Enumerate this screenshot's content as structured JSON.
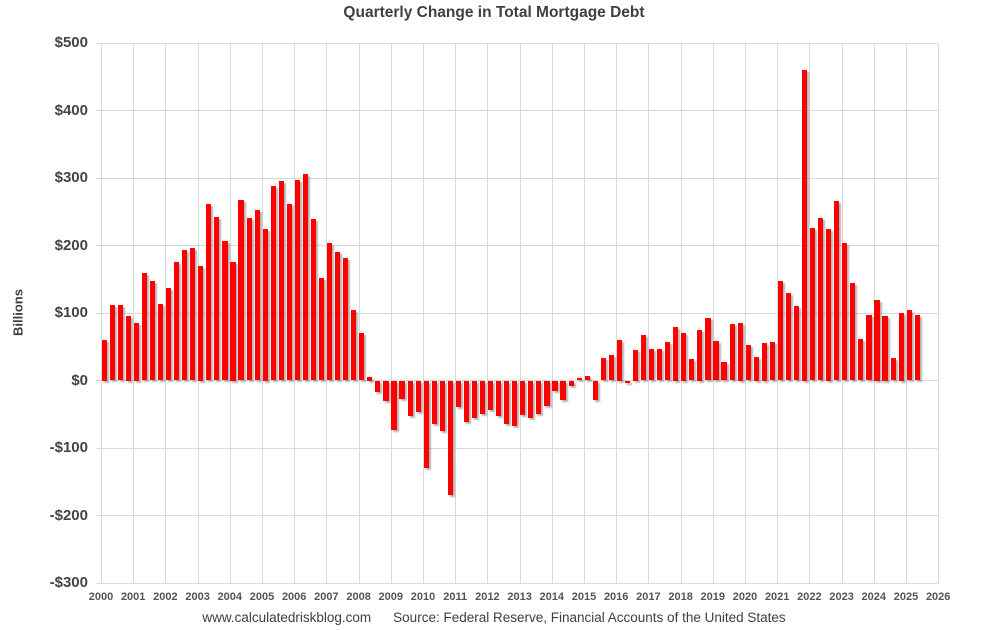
{
  "title": "Quarterly Change in Total Mortgage Debt",
  "y_axis": {
    "label": "Billions",
    "ticks": [
      {
        "label": "$500",
        "value": 500
      },
      {
        "label": "$400",
        "value": 400
      },
      {
        "label": "$300",
        "value": 300
      },
      {
        "label": "$200",
        "value": 200
      },
      {
        "label": "$100",
        "value": 100
      },
      {
        "label": "$0",
        "value": 0
      },
      {
        "label": "-$100",
        "value": -100
      },
      {
        "label": "-$200",
        "value": -200
      },
      {
        "label": "-$300",
        "value": -300
      }
    ]
  },
  "x_axis": {
    "years": [
      "2000",
      "2001",
      "2002",
      "2003",
      "2004",
      "2005",
      "2006",
      "2007",
      "2008",
      "2009",
      "2010",
      "2011",
      "2012",
      "2013",
      "2014",
      "2015",
      "2016",
      "2017",
      "2018",
      "2019",
      "2020",
      "2021",
      "2022",
      "2023",
      "2024",
      "2025",
      "2026"
    ]
  },
  "footer": {
    "website": "www.calculatedriskblog.com",
    "source": "Source: Federal Reserve, Financial Accounts of the United States"
  },
  "chart_data": {
    "type": "bar",
    "title": "Quarterly Change in Total Mortgage Debt",
    "ylabel": "Billions",
    "ylim": [
      -300,
      500
    ],
    "x_range_years": [
      2000,
      2026
    ],
    "grid": true,
    "legend": "none",
    "bar_color": "#fe0000",
    "units": "billions of dollars",
    "x": [
      "2000Q1",
      "2000Q2",
      "2000Q3",
      "2000Q4",
      "2001Q1",
      "2001Q2",
      "2001Q3",
      "2001Q4",
      "2002Q1",
      "2002Q2",
      "2002Q3",
      "2002Q4",
      "2003Q1",
      "2003Q2",
      "2003Q3",
      "2003Q4",
      "2004Q1",
      "2004Q2",
      "2004Q3",
      "2004Q4",
      "2005Q1",
      "2005Q2",
      "2005Q3",
      "2005Q4",
      "2006Q1",
      "2006Q2",
      "2006Q3",
      "2006Q4",
      "2007Q1",
      "2007Q2",
      "2007Q3",
      "2007Q4",
      "2008Q1",
      "2008Q2",
      "2008Q3",
      "2008Q4",
      "2009Q1",
      "2009Q2",
      "2009Q3",
      "2009Q4",
      "2010Q1",
      "2010Q2",
      "2010Q3",
      "2010Q4",
      "2011Q1",
      "2011Q2",
      "2011Q3",
      "2011Q4",
      "2012Q1",
      "2012Q2",
      "2012Q3",
      "2012Q4",
      "2013Q1",
      "2013Q2",
      "2013Q3",
      "2013Q4",
      "2014Q1",
      "2014Q2",
      "2014Q3",
      "2014Q4",
      "2015Q1",
      "2015Q2",
      "2015Q3",
      "2015Q4",
      "2016Q1",
      "2016Q2",
      "2016Q3",
      "2016Q4",
      "2017Q1",
      "2017Q2",
      "2017Q3",
      "2017Q4",
      "2018Q1",
      "2018Q2",
      "2018Q3",
      "2018Q4",
      "2019Q1",
      "2019Q2",
      "2019Q3",
      "2019Q4",
      "2020Q1",
      "2020Q2",
      "2020Q3",
      "2020Q4",
      "2021Q1",
      "2021Q2",
      "2021Q3",
      "2021Q4",
      "2022Q1",
      "2022Q2",
      "2022Q3",
      "2022Q4",
      "2023Q1",
      "2023Q2",
      "2023Q3",
      "2023Q4",
      "2024Q1",
      "2024Q2",
      "2024Q3",
      "2024Q4",
      "2025Q1",
      "2025Q2"
    ],
    "values": [
      60,
      112,
      112,
      95,
      85,
      159,
      147,
      114,
      137,
      176,
      194,
      197,
      170,
      261,
      242,
      207,
      175,
      268,
      241,
      252,
      225,
      288,
      296,
      262,
      297,
      306,
      239,
      152,
      203,
      191,
      181,
      104,
      71,
      5,
      -17,
      -31,
      -73,
      -28,
      -53,
      -46,
      -129,
      -65,
      -75,
      -170,
      -39,
      -61,
      -55,
      -49,
      -44,
      -53,
      -65,
      -68,
      -51,
      -55,
      -49,
      -38,
      -15,
      -29,
      -8,
      4,
      6,
      -29,
      33,
      38,
      60,
      -4,
      45,
      68,
      47,
      46,
      57,
      80,
      70,
      32,
      75,
      92,
      58,
      27,
      83,
      85,
      53,
      35,
      55,
      57,
      147,
      129,
      111,
      460,
      226,
      241,
      225,
      266,
      203,
      144,
      61,
      97,
      120,
      95,
      34,
      100,
      104,
      97
    ]
  }
}
